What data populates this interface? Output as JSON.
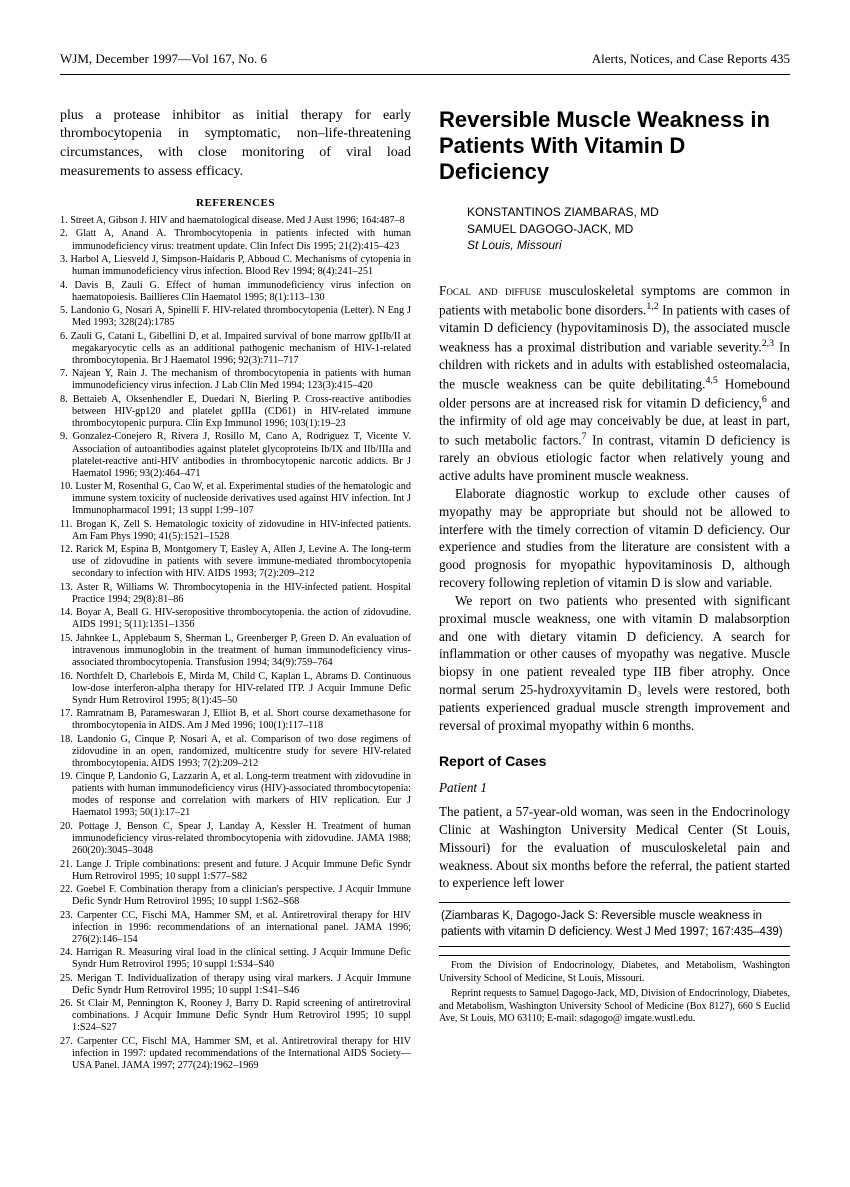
{
  "header": {
    "left": "WJM, December 1997—Vol 167, No. 6",
    "right": "Alerts, Notices, and Case Reports  435"
  },
  "leftColumn": {
    "leadParagraph": "plus a protease inhibitor as initial therapy for early thrombocytopenia in symptomatic, non–life-threatening circumstances, with close monitoring of viral load measurements to assess efficacy.",
    "referencesHeading": "REFERENCES",
    "references": [
      "Street A, Gibson J. HIV and haematological disease. Med J Aust 1996; 164:487–8",
      "Glatt A, Anand A. Thrombocytopenia in patients infected with human immunodeficiency virus: treatment update. Clin Infect Dis 1995; 21(2):415–423",
      "Harbol A, Liesveld J, Simpson-Haidaris P, Abboud C. Mechanisms of cytopenia in human immunodeficiency virus infection. Blood Rev 1994; 8(4):241–251",
      "Davis B, Zauli G. Effect of human immunodeficiency virus infection on haematopoiesis. Baillieres Clin Haematol 1995; 8(1):113–130",
      "Landonio G, Nosari A, Spinelli F. HIV-related thrombocytopenia (Letter). N Eng J Med 1993; 328(24):1785",
      "Zauli G, Catani L, Gibellini D, et al. Impaired survival of bone marrow gpIIb/II at megakaryocytic cells as an additional pathogenic mechanism of HIV-1-related thrombocytopenia. Br J Haematol 1996; 92(3):711–717",
      "Najean Y, Rain J. The mechanism of thrombocytopenia in patients with human immunodeficiency virus infection. J Lab Clin Med 1994; 123(3):415–420",
      "Bettaieb A, Oksenhendler E, Duedari N, Bierling P. Cross-reactive antibodies between HIV-gp120 and platelet gpIIIa (CD61) in HIV-related immune thrombocytopenic purpura. Clin Exp Immunol 1996; 103(1):19–23",
      "Gonzalez-Conejero R, Rivera J, Rosillo M, Cano A, Rodriguez T, Vicente V. Association of autoantibodies against platelet glycoproteins Ib/IX and IIb/IIIa and platelet-reactive anti-HIV antibodies in thrombocytopenic narcotic addicts. Br J Haematol 1996; 93(2):464–471",
      "Luster M, Rosenthal G, Cao W, et al. Experimental studies of the hematologic and immune system toxicity of nucleoside derivatives used against HIV infection. Int J Immunopharmacol 1991; 13 suppl 1:99–107",
      "Brogan K, Zell S. Hematologic toxicity of zidovudine in HIV-infected patients. Am Fam Phys 1990; 41(5):1521–1528",
      "Rarick M, Espina B, Montgomery T, Easley A, Allen J, Levine A. The long-term use of zidovudine in patients with severe immune-mediated thrombocytopenia secondary to infection with HIV. AIDS 1993; 7(2):209–212",
      "Aster R, Williams W. Thrombocytopenia in the HIV-infected patient. Hospital Practice 1994; 29(8):81–86",
      "Boyar A, Beall G. HIV-seropositive thrombocytopenia. the action of zidovudine. AIDS 1991; 5(11):1351–1356",
      "Jahnkee L, Applebaum S, Sherman L, Greenberger P, Green D. An evaluation of intravenous immunoglobin in the treatment of human immunodeficiency virus-associated thrombocytopenia. Transfusion 1994; 34(9):759–764",
      "Northfelt D, Charlebois E, Mirda M, Child C, Kaplan L, Abrams D. Continuous low-dose interferon-alpha therapy for HIV-related ITP. J Acquir Immune Defic Syndr Hum Retrovirol 1995; 8(1):45–50",
      "Ramratnam B, Parameswaran J, Elliot B, et al. Short course dexamethasone for thrombocytopenia in AIDS. Am J Med 1996; 100(1):117–118",
      "Landonio G, Cinque P, Nosari A, et al. Comparison of two dose regimens of zidovudine in an open, randomized, multicentre study for severe HIV-related thrombocytopenia. AIDS 1993; 7(2):209–212",
      "Cinque P, Landonio G, Lazzarin A, et al. Long-term treatment with zidovudine in patients with human immunodeficiency virus (HIV)-associated thrombocytopenia: modes of response and correlation with markers of HIV replication. Eur J Haematol 1993; 50(1):17–21",
      "Pottage J, Benson C, Spear J, Landay A, Kessler H. Treatment of human immunodeficiency virus-related thrombocytopenia with zidovudine. JAMA 1988; 260(20):3045–3048",
      "Lange J. Triple combinations: present and future. J Acquir Immune Defic Syndr Hum Retrovirol 1995; 10 suppl 1:S77–S82",
      "Goebel F. Combination therapy from a clinician's perspective. J Acquir Immune Defic Syndr Hum Retrovirol 1995; 10 suppl 1:S62–S68",
      "Carpenter CC, Fischi MA, Hammer SM, et al. Antiretroviral therapy for HIV infection in 1996: recommendations of an international panel. JAMA 1996; 276(2):146–154",
      "Harrigan R. Measuring viral load in the clinical setting. J Acquir Immune Defic Syndr Hum Retrovirol 1995; 10 suppl 1:S34–S40",
      "Merigan T. Individualization of therapy using viral markers. J Acquir Immune Defic Syndr Hum Retrovirol 1995; 10 suppl 1:S41–S46",
      "St Clair M, Pennington K, Rooney J, Barry D. Rapid screening of antiretroviral combinations. J Acquir Immune Defic Syndr Hum Retrovirol 1995; 10 suppl 1:S24–S27",
      "Carpenter CC, Fischl MA, Hammer SM, et al. Antiretroviral therapy for HIV infection in 1997: updated recommendations of the International AIDS Society—USA Panel. JAMA 1997; 277(24):1962–1969"
    ]
  },
  "rightColumn": {
    "title": "Reversible Muscle Weakness in Patients With Vitamin D Deficiency",
    "authors": {
      "line1": "KONSTANTINOS ZIAMBARAS, MD",
      "line2": "SAMUEL DAGOGO-JACK, MD",
      "location": "St Louis, Missouri"
    },
    "para1_lead": "Focal and diffuse",
    "para1_rest": " musculoskeletal symptoms are common in patients with metabolic bone disorders.",
    "para1_cont": " In patients with cases of vitamin D deficiency (hypovitaminosis D), the associated muscle weakness has a proximal distribution and variable severity.",
    "para1_cont2": " In children with rickets and in adults with established osteomalacia, the muscle weakness can be quite debilitating.",
    "para1_cont3": " Homebound older persons are at increased risk for vitamin D deficiency,",
    "para1_cont4": " and the infirmity of old age may conceivably be due, at least in part, to such metabolic factors.",
    "para1_cont5": " In contrast, vitamin D deficiency is rarely an obvious etiologic factor when relatively young and active adults have prominent muscle weakness.",
    "para2": "Elaborate diagnostic workup to exclude other causes of myopathy may be appropriate but should not be allowed to interfere with the timely correction of vitamin D deficiency. Our experience and studies from the literature are consistent with a good prognosis for myopathic hypovitaminosis D, although recovery following repletion of vitamin D is slow and variable.",
    "para3": "We report on two patients who presented with significant proximal muscle weakness, one with vitamin D malabsorption and one with dietary vitamin D deficiency. A search for inflammation or other causes of myopathy was negative. Muscle biopsy in one patient revealed type IIB fiber atrophy. Once normal serum 25-hydroxyvitamin D₃ levels were restored, both patients experienced gradual muscle strength improvement and reversal of proximal myopathy within 6 months.",
    "sectionHeading": "Report of Cases",
    "subsection": "Patient 1",
    "para4": "The patient, a 57-year-old woman, was seen in the Endocrinology Clinic at Washington University Medical Center (St Louis, Missouri) for the evaluation of musculoskeletal pain and weakness. About six months before the referral, the patient started to experience left lower",
    "citationBox": "(Ziambaras K, Dagogo-Jack S: Reversible muscle weakness in patients with vitamin D deficiency. West J Med 1997; 167:435–439)",
    "footnote": {
      "p1": "From the Division of Endocrinology, Diabetes, and Metabolism, Washington University School of Medicine, St Louis, Missouri.",
      "p2": "Reprint requests to Samuel Dagogo-Jack, MD, Division of Endocrinology, Diabetes, and Metabolism, Washington University School of Medicine (Box 8127), 660 S Euclid Ave, St Louis, MO 63110; E-mail: sdagogo@ imgate.wustl.edu."
    }
  }
}
